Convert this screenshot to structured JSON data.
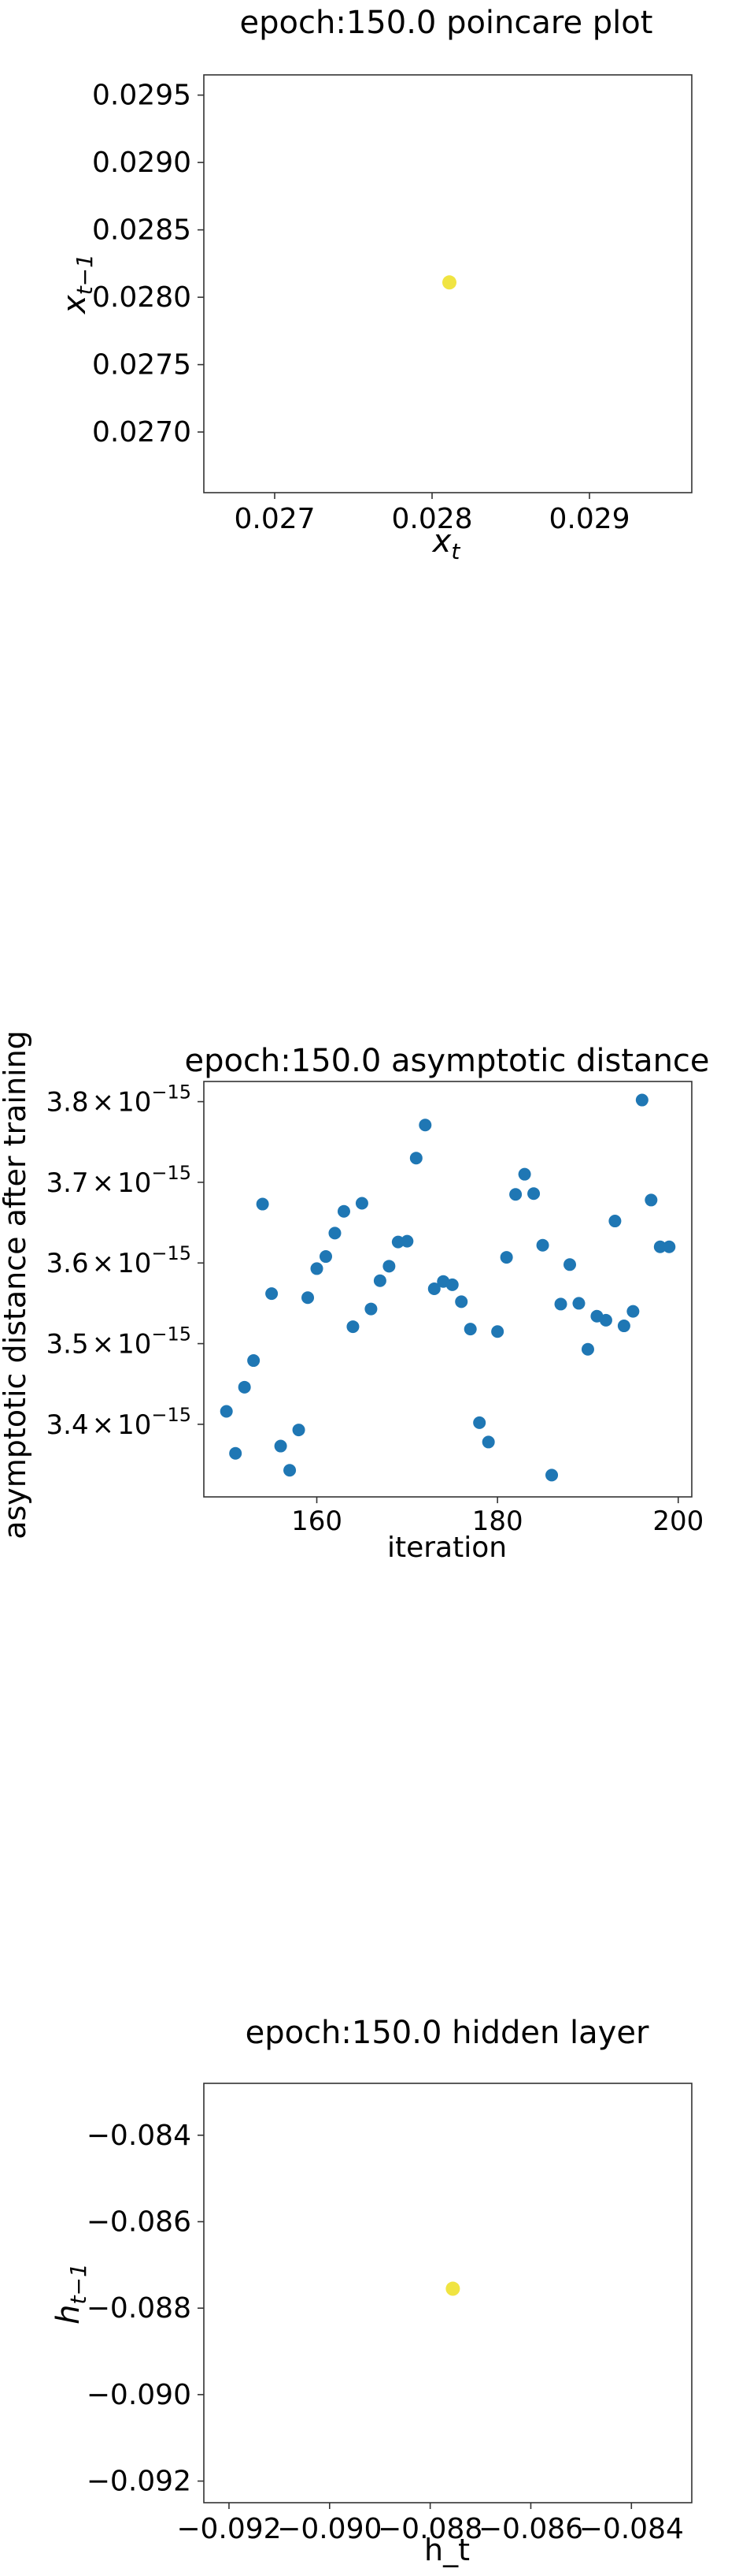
{
  "chart_data": [
    {
      "type": "scatter",
      "title": "epoch:150.0 poincare plot",
      "xlabel": "x_t",
      "ylabel": "x_{t-1}",
      "xlim": [
        0.02655,
        0.02965
      ],
      "ylim": [
        0.02655,
        0.02965
      ],
      "xticks": [
        0.027,
        0.028,
        0.029
      ],
      "xtick_labels": [
        "0.027",
        "0.028",
        "0.029"
      ],
      "yticks": [
        0.027,
        0.0275,
        0.028,
        0.0285,
        0.029,
        0.0295
      ],
      "ytick_labels": [
        "0.0270",
        "0.0275",
        "0.0280",
        "0.0285",
        "0.0290",
        "0.0295"
      ],
      "grid": false,
      "color": "#f0e442",
      "points": [
        {
          "x": 0.02811,
          "y": 0.02811
        }
      ]
    },
    {
      "type": "scatter",
      "title": "epoch:150.0 asymptotic distance",
      "xlabel": "iteration",
      "ylabel": "asymptotic distance after training",
      "xlim": [
        147.5,
        201.5
      ],
      "ylim": [
        3.31e-15,
        3.825e-15
      ],
      "xticks": [
        160,
        180,
        200
      ],
      "xtick_labels": [
        "160",
        "180",
        "200"
      ],
      "yticks": [
        3.4e-15,
        3.5e-15,
        3.6e-15,
        3.7e-15,
        3.8e-15
      ],
      "ytick_labels": [
        {
          "mantissa": "3.4",
          "times": "×",
          "base": "10",
          "exponent": "−15"
        },
        {
          "mantissa": "3.5",
          "times": "×",
          "base": "10",
          "exponent": "−15"
        },
        {
          "mantissa": "3.6",
          "times": "×",
          "base": "10",
          "exponent": "−15"
        },
        {
          "mantissa": "3.7",
          "times": "×",
          "base": "10",
          "exponent": "−15"
        },
        {
          "mantissa": "3.8",
          "times": "×",
          "base": "10",
          "exponent": "−15"
        }
      ],
      "grid": false,
      "color": "#1f77b4",
      "x": [
        150,
        151,
        152,
        153,
        154,
        155,
        156,
        157,
        158,
        159,
        160,
        161,
        162,
        163,
        164,
        165,
        166,
        167,
        168,
        169,
        170,
        171,
        172,
        173,
        174,
        175,
        176,
        177,
        178,
        179,
        180,
        181,
        182,
        183,
        184,
        185,
        186,
        187,
        188,
        189,
        190,
        191,
        192,
        193,
        194,
        195,
        196,
        197,
        198,
        199
      ],
      "y": [
        3.416e-15,
        3.364e-15,
        3.446e-15,
        3.479e-15,
        3.673e-15,
        3.562e-15,
        3.373e-15,
        3.343e-15,
        3.393e-15,
        3.557e-15,
        3.593e-15,
        3.608e-15,
        3.637e-15,
        3.664e-15,
        3.521e-15,
        3.674e-15,
        3.543e-15,
        3.578e-15,
        3.596e-15,
        3.626e-15,
        3.627e-15,
        3.73e-15,
        3.771e-15,
        3.568e-15,
        3.577e-15,
        3.573e-15,
        3.552e-15,
        3.518e-15,
        3.402e-15,
        3.378e-15,
        3.515e-15,
        3.607e-15,
        3.685e-15,
        3.71e-15,
        3.686e-15,
        3.622e-15,
        3.337e-15,
        3.549e-15,
        3.598e-15,
        3.55e-15,
        3.493e-15,
        3.534e-15,
        3.529e-15,
        3.652e-15,
        3.522e-15,
        3.54e-15,
        3.802e-15,
        3.678e-15,
        3.62e-15,
        3.62e-15
      ]
    },
    {
      "type": "scatter",
      "title": "epoch:150.0 hidden layer",
      "xlabel": "h_t",
      "ylabel": "h_{t-1}",
      "xlim": [
        -0.0925,
        -0.0828
      ],
      "ylim": [
        -0.0925,
        -0.0828
      ],
      "xticks": [
        -0.092,
        -0.09,
        -0.088,
        -0.086,
        -0.084
      ],
      "xtick_labels": [
        "−0.092",
        "−0.090",
        "−0.088",
        "−0.086",
        "−0.084"
      ],
      "yticks": [
        -0.092,
        -0.09,
        -0.088,
        -0.086,
        -0.084
      ],
      "ytick_labels": [
        "−0.092",
        "−0.090",
        "−0.088",
        "−0.086",
        "−0.084"
      ],
      "grid": false,
      "color": "#f0e442",
      "points": [
        {
          "x": -0.08755,
          "y": -0.08755
        }
      ]
    }
  ]
}
